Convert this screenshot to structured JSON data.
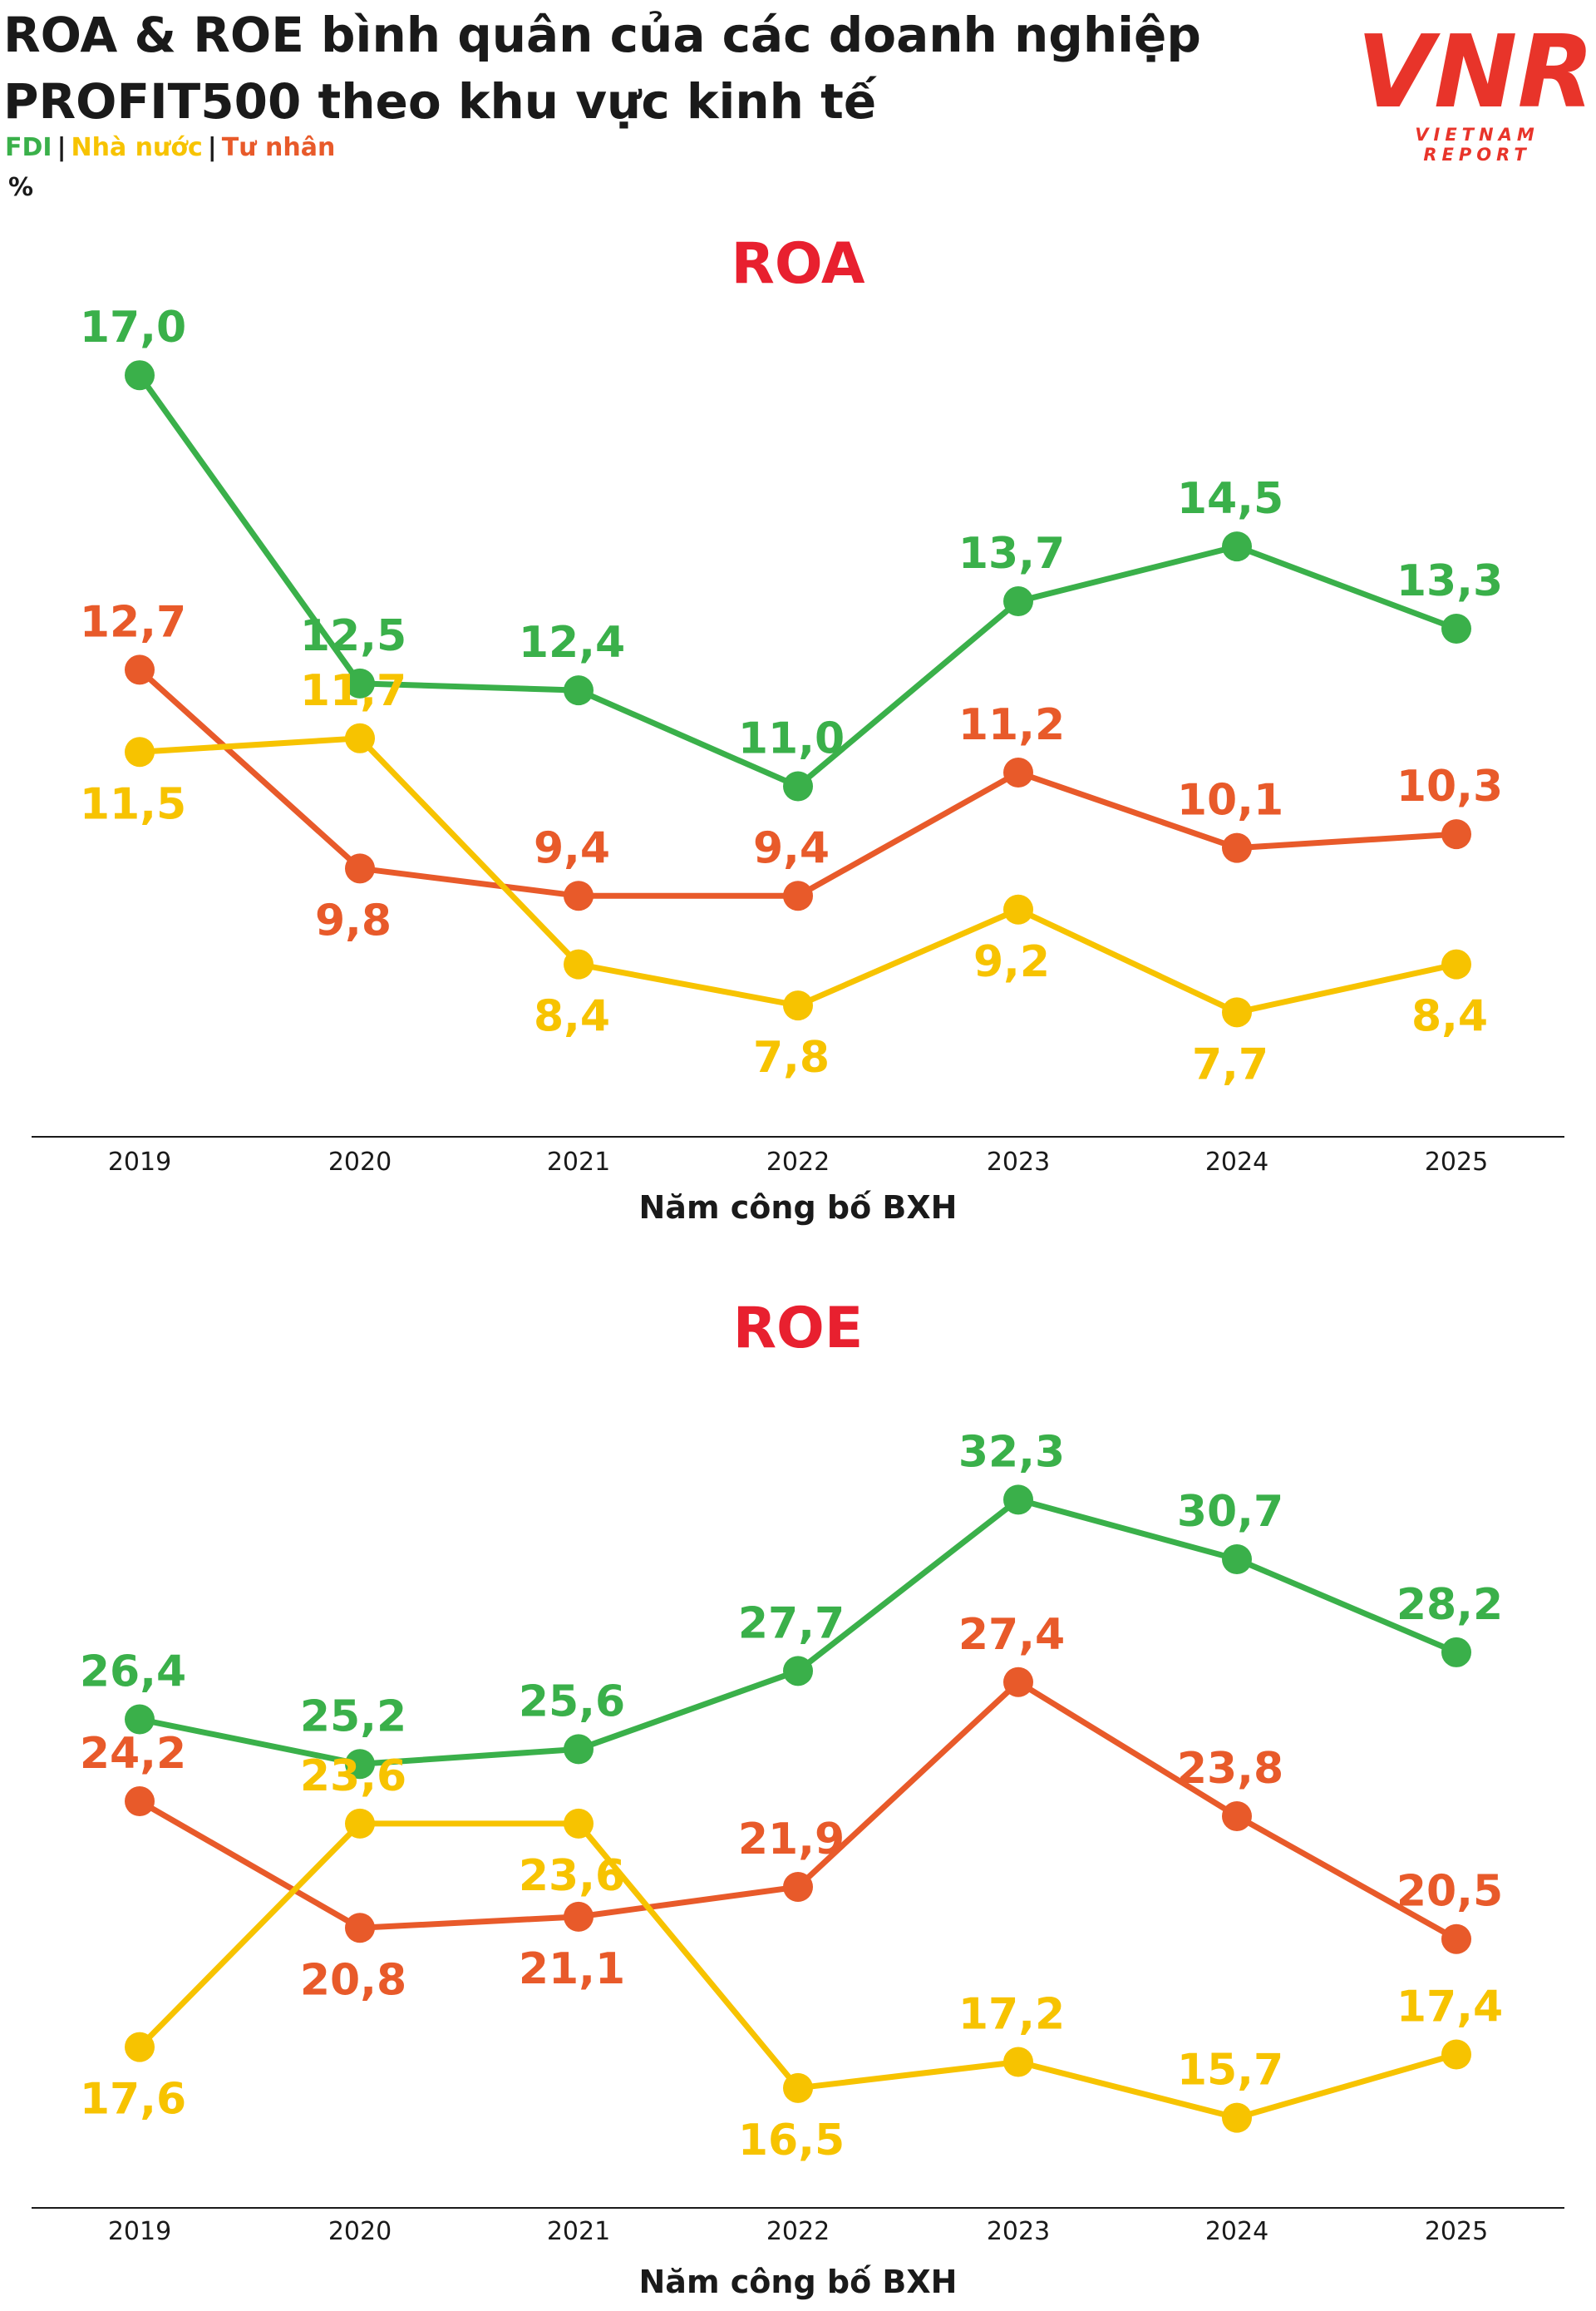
{
  "header": {
    "title_line1": "ROA & ROE bình quân của các doanh nghiệp",
    "title_line2": "PROFIT500 theo khu vực kinh tế",
    "legend": [
      {
        "label": "FDI",
        "color": "#3ab04a"
      },
      {
        "label": "Nhà nước",
        "color": "#f7c300"
      },
      {
        "label": "Tư nhân",
        "color": "#e85a2a"
      }
    ],
    "unit": "%"
  },
  "logo": {
    "mark": "VNR",
    "subtitle": "VIETNAM REPORT",
    "color": "#e8342a"
  },
  "chart_data": [
    {
      "type": "line",
      "title": "ROA",
      "xlabel": "Năm công bố BXH",
      "ylabel": "%",
      "categories": [
        "2019",
        "2020",
        "2021",
        "2022",
        "2023",
        "2024",
        "2025"
      ],
      "ylim": [
        7.0,
        17.5
      ],
      "series": [
        {
          "name": "FDI",
          "color": "#3ab04a",
          "values": [
            17.0,
            12.5,
            12.4,
            11.0,
            13.7,
            14.5,
            13.3
          ],
          "labels": [
            "17,0",
            "12,5",
            "12,4",
            "11,0",
            "13,7",
            "14,5",
            "13,3"
          ]
        },
        {
          "name": "Tư nhân",
          "color": "#e85a2a",
          "values": [
            12.7,
            9.8,
            9.4,
            9.4,
            11.2,
            10.1,
            10.3
          ],
          "labels": [
            "12,7",
            "9,8",
            "9,4",
            "9,4",
            "11,2",
            "10,1",
            "10,3"
          ]
        },
        {
          "name": "Nhà nước",
          "color": "#f7c300",
          "values": [
            11.5,
            11.7,
            8.4,
            7.8,
            9.2,
            7.7,
            8.4
          ],
          "labels": [
            "11,5",
            "11,7",
            "8,4",
            "7,8",
            "9,2",
            "7,7",
            "8,4"
          ]
        }
      ]
    },
    {
      "type": "line",
      "title": "ROE",
      "xlabel": "Năm công bố BXH",
      "ylabel": "%",
      "categories": [
        "2019",
        "2020",
        "2021",
        "2022",
        "2023",
        "2024",
        "2025"
      ],
      "ylim": [
        15.0,
        33.0
      ],
      "series": [
        {
          "name": "FDI",
          "color": "#3ab04a",
          "values": [
            26.4,
            25.2,
            25.6,
            27.7,
            32.3,
            30.7,
            28.2
          ],
          "labels": [
            "26,4",
            "25,2",
            "25,6",
            "27,7",
            "32,3",
            "30,7",
            "28,2"
          ]
        },
        {
          "name": "Tư nhân",
          "color": "#e85a2a",
          "values": [
            24.2,
            20.8,
            21.1,
            21.9,
            27.4,
            23.8,
            20.5
          ],
          "labels": [
            "24,2",
            "20,8",
            "21,1",
            "21,9",
            "27,4",
            "23,8",
            "20,5"
          ]
        },
        {
          "name": "Nhà nước",
          "color": "#f7c300",
          "values": [
            17.6,
            23.6,
            23.6,
            16.5,
            17.2,
            15.7,
            17.4
          ],
          "labels": [
            "17,6",
            "23,6",
            "23,6",
            "16,5",
            "17,2",
            "15,7",
            "17,4"
          ]
        }
      ]
    }
  ]
}
